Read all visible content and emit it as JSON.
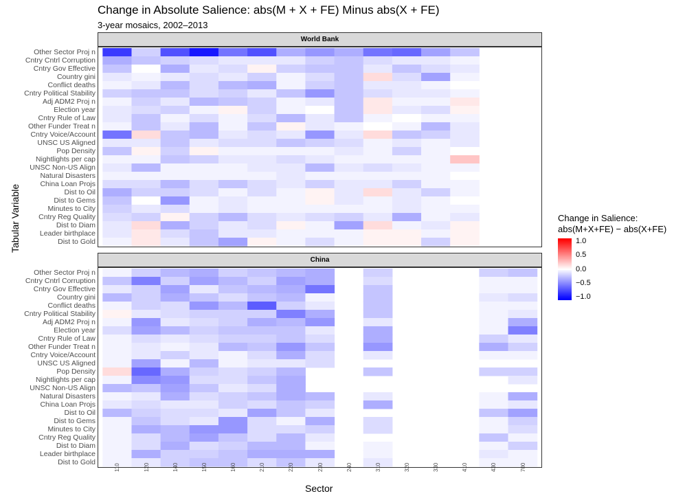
{
  "chart_data": {
    "type": "heatmap",
    "title": "Change in Absolute Salience: abs(M + X + FE) Minus abs(X + FE)",
    "subtitle": "3-year mosaics, 2002–2013",
    "xlabel": "Sector",
    "ylabel": "Tabular Variable",
    "x_categories": [
      "110",
      "120",
      "140",
      "150",
      "160",
      "210",
      "220",
      "230",
      "240",
      "310",
      "320",
      "330",
      "410",
      "430",
      "700"
    ],
    "y_categories": [
      "Other Sector Proj n",
      "Cntry Cntrl Corruption",
      "Cntry Gov Effective",
      "Country gini",
      "Conflict deaths",
      "Cntry Political Stability",
      "Adj ADM2 Proj n",
      "Election year",
      "Cntry Rule of Law",
      "Other Funder Treat n",
      "Cntry Voice/Account",
      "UNSC US Aligned",
      "Pop Density",
      "Nightlights per cap",
      "UNSC Non-US Align",
      "Natural Disasters",
      "China Loan Projs",
      "Dist to Oil",
      "Dist to Gems",
      "Minutes to City",
      "Cntry Reg Quality",
      "Dist to Diam",
      "Leader birthplace",
      "Dist to Gold"
    ],
    "legend": {
      "title_line1": "Change in Salience:",
      "title_line2": "abs(M+X+FE) − abs(X+FE)",
      "range": [
        -1.1,
        1.1
      ],
      "breaks": [
        1.0,
        0.5,
        0.0,
        -0.5,
        -1.0
      ],
      "break_labels": [
        "1.0",
        "0.5",
        "0.0",
        "−0.5",
        "−1.0"
      ],
      "low_color": "#0000ff",
      "mid_color": "#ffffff",
      "high_color": "#ff0000"
    },
    "panels": [
      {
        "name": "World Bank",
        "values": [
          [
            -0.85,
            -0.2,
            -0.75,
            -1.0,
            -0.6,
            -0.75,
            -0.35,
            -0.45,
            -0.35,
            -0.6,
            -0.65,
            -0.4,
            -0.25,
            null,
            null
          ],
          [
            -0.35,
            -0.25,
            -0.2,
            -0.15,
            -0.1,
            -0.1,
            -0.1,
            -0.2,
            -0.25,
            -0.15,
            -0.1,
            -0.1,
            -0.05,
            null,
            null
          ],
          [
            -0.25,
            0.0,
            -0.35,
            -0.1,
            -0.15,
            0.05,
            -0.2,
            -0.25,
            -0.25,
            -0.1,
            -0.25,
            -0.15,
            -0.1,
            null,
            null
          ],
          [
            -0.1,
            -0.05,
            -0.1,
            -0.15,
            -0.1,
            -0.2,
            -0.05,
            -0.15,
            -0.25,
            0.15,
            -0.15,
            -0.4,
            -0.05,
            null,
            null
          ],
          [
            -0.05,
            -0.1,
            -0.3,
            -0.15,
            -0.3,
            -0.35,
            -0.05,
            -0.2,
            -0.25,
            -0.1,
            -0.1,
            -0.05,
            0.0,
            null,
            null
          ],
          [
            -0.2,
            -0.25,
            -0.25,
            -0.15,
            -0.2,
            -0.1,
            -0.25,
            -0.45,
            -0.25,
            -0.15,
            -0.1,
            -0.1,
            -0.05,
            null,
            null
          ],
          [
            -0.05,
            -0.2,
            -0.1,
            -0.3,
            -0.25,
            -0.2,
            -0.05,
            -0.1,
            -0.25,
            0.1,
            -0.05,
            -0.05,
            0.1,
            null,
            null
          ],
          [
            -0.1,
            -0.15,
            -0.2,
            -0.05,
            0.05,
            -0.2,
            -0.05,
            0.0,
            -0.25,
            0.1,
            -0.1,
            -0.15,
            0.05,
            null,
            null
          ],
          [
            -0.1,
            -0.25,
            -0.05,
            -0.15,
            -0.05,
            -0.15,
            -0.3,
            -0.1,
            -0.25,
            -0.05,
            0.0,
            -0.05,
            -0.05,
            null,
            null
          ],
          [
            -0.05,
            -0.25,
            -0.1,
            -0.3,
            -0.05,
            -0.25,
            0.05,
            -0.1,
            -0.05,
            0.0,
            -0.05,
            -0.3,
            -0.1,
            null,
            null
          ],
          [
            -0.6,
            0.15,
            -0.25,
            -0.3,
            -0.1,
            -0.15,
            -0.1,
            -0.45,
            -0.1,
            0.15,
            -0.25,
            -0.2,
            -0.1,
            null,
            null
          ],
          [
            -0.1,
            -0.1,
            -0.25,
            -0.1,
            -0.15,
            -0.15,
            -0.25,
            -0.2,
            -0.15,
            -0.05,
            -0.1,
            -0.05,
            -0.1,
            null,
            null
          ],
          [
            -0.25,
            0.05,
            -0.2,
            0.05,
            -0.05,
            -0.05,
            -0.05,
            -0.05,
            -0.1,
            -0.05,
            -0.2,
            -0.05,
            0.0,
            null,
            null
          ],
          [
            -0.05,
            -0.05,
            -0.25,
            -0.2,
            -0.1,
            -0.1,
            -0.15,
            -0.1,
            -0.05,
            -0.05,
            -0.05,
            -0.05,
            0.25,
            null,
            null
          ],
          [
            -0.1,
            -0.3,
            -0.05,
            -0.05,
            -0.05,
            -0.1,
            -0.1,
            -0.3,
            -0.1,
            -0.15,
            -0.1,
            -0.05,
            -0.05,
            null,
            null
          ],
          [
            -0.05,
            -0.05,
            -0.05,
            -0.05,
            -0.05,
            -0.05,
            -0.1,
            -0.05,
            -0.05,
            -0.05,
            -0.05,
            -0.05,
            0.0,
            null,
            null
          ],
          [
            -0.15,
            -0.15,
            -0.3,
            -0.15,
            -0.25,
            -0.15,
            -0.1,
            -0.2,
            -0.1,
            -0.1,
            -0.2,
            -0.05,
            -0.05,
            null,
            null
          ],
          [
            -0.35,
            -0.2,
            -0.2,
            -0.15,
            -0.05,
            -0.15,
            -0.05,
            0.05,
            -0.1,
            0.15,
            -0.1,
            -0.2,
            -0.05,
            null,
            null
          ],
          [
            -0.25,
            0.0,
            -0.45,
            -0.05,
            -0.1,
            -0.05,
            -0.05,
            0.05,
            -0.1,
            -0.05,
            -0.1,
            -0.05,
            0.0,
            null,
            null
          ],
          [
            -0.2,
            -0.1,
            -0.15,
            -0.05,
            -0.1,
            -0.05,
            -0.05,
            -0.05,
            -0.05,
            -0.05,
            -0.1,
            -0.05,
            -0.05,
            null,
            null
          ],
          [
            -0.15,
            -0.2,
            0.05,
            -0.2,
            -0.3,
            -0.15,
            -0.1,
            -0.15,
            -0.2,
            -0.1,
            -0.35,
            -0.05,
            -0.1,
            null,
            null
          ],
          [
            -0.1,
            0.15,
            -0.35,
            -0.2,
            -0.1,
            -0.15,
            0.05,
            -0.05,
            -0.4,
            0.15,
            -0.05,
            -0.1,
            0.05,
            null,
            null
          ],
          [
            -0.1,
            0.1,
            -0.15,
            -0.25,
            -0.1,
            -0.1,
            -0.05,
            -0.05,
            -0.05,
            0.05,
            0.05,
            -0.05,
            0.05,
            null,
            null
          ],
          [
            -0.05,
            0.1,
            -0.1,
            -0.25,
            -0.4,
            0.05,
            -0.05,
            -0.15,
            -0.05,
            0.05,
            0.05,
            -0.2,
            0.05,
            null,
            null
          ]
        ]
      },
      {
        "name": "China",
        "values": [
          [
            -0.05,
            -0.2,
            -0.3,
            -0.35,
            -0.2,
            -0.25,
            -0.3,
            -0.35,
            null,
            -0.2,
            null,
            null,
            null,
            -0.2,
            -0.25
          ],
          [
            -0.25,
            -0.55,
            -0.2,
            -0.4,
            -0.3,
            -0.2,
            -0.4,
            -0.35,
            null,
            -0.15,
            null,
            null,
            null,
            -0.05,
            -0.05
          ],
          [
            -0.1,
            -0.2,
            -0.4,
            -0.1,
            -0.25,
            -0.3,
            -0.35,
            -0.6,
            null,
            -0.25,
            null,
            null,
            null,
            -0.05,
            -0.05
          ],
          [
            -0.3,
            -0.2,
            -0.35,
            -0.25,
            -0.15,
            -0.25,
            -0.3,
            -0.05,
            null,
            -0.25,
            null,
            null,
            null,
            -0.1,
            -0.15
          ],
          [
            -0.05,
            -0.2,
            -0.15,
            -0.45,
            -0.3,
            -0.7,
            -0.2,
            -0.1,
            null,
            -0.25,
            null,
            null,
            null,
            -0.05,
            -0.05
          ],
          [
            0.05,
            -0.1,
            -0.15,
            -0.2,
            -0.2,
            -0.2,
            -0.55,
            -0.35,
            null,
            -0.25,
            null,
            null,
            null,
            -0.05,
            -0.1
          ],
          [
            -0.05,
            -0.45,
            -0.1,
            -0.15,
            -0.2,
            -0.35,
            -0.3,
            -0.45,
            null,
            -0.1,
            null,
            null,
            null,
            -0.05,
            -0.35
          ],
          [
            -0.15,
            -0.4,
            -0.3,
            -0.2,
            -0.25,
            -0.25,
            -0.25,
            -0.1,
            null,
            -0.35,
            null,
            null,
            null,
            -0.05,
            -0.55
          ],
          [
            -0.05,
            -0.15,
            -0.1,
            -0.15,
            -0.2,
            -0.2,
            -0.25,
            -0.15,
            null,
            -0.35,
            null,
            null,
            null,
            -0.2,
            -0.1
          ],
          [
            -0.05,
            -0.1,
            -0.05,
            -0.1,
            -0.3,
            -0.25,
            -0.45,
            -0.25,
            null,
            -0.45,
            null,
            null,
            null,
            -0.35,
            -0.2
          ],
          [
            -0.05,
            -0.1,
            -0.2,
            -0.1,
            -0.05,
            -0.15,
            -0.35,
            -0.15,
            null,
            -0.1,
            null,
            null,
            null,
            -0.05,
            -0.05
          ],
          [
            -0.05,
            -0.4,
            -0.05,
            -0.3,
            -0.05,
            -0.1,
            -0.1,
            -0.15,
            null,
            null,
            null,
            null,
            null,
            null,
            null
          ],
          [
            0.15,
            -0.65,
            -0.35,
            -0.2,
            -0.15,
            -0.2,
            -0.3,
            null,
            null,
            -0.25,
            null,
            null,
            null,
            -0.2,
            -0.2
          ],
          [
            -0.05,
            -0.5,
            -0.45,
            -0.15,
            -0.15,
            -0.25,
            -0.35,
            null,
            null,
            null,
            null,
            null,
            null,
            null,
            -0.1
          ],
          [
            -0.3,
            -0.25,
            -0.4,
            -0.25,
            -0.1,
            -0.15,
            -0.35,
            null,
            null,
            null,
            null,
            null,
            null,
            null,
            null
          ],
          [
            -0.05,
            -0.1,
            -0.35,
            -0.15,
            -0.2,
            -0.25,
            -0.35,
            -0.3,
            null,
            -0.1,
            null,
            null,
            null,
            -0.05,
            -0.35
          ],
          [
            -0.1,
            -0.15,
            -0.1,
            -0.1,
            -0.2,
            -0.15,
            -0.25,
            -0.2,
            null,
            -0.35,
            null,
            null,
            null,
            -0.05,
            -0.1
          ],
          [
            -0.3,
            -0.2,
            -0.15,
            -0.15,
            -0.1,
            -0.4,
            -0.25,
            -0.1,
            null,
            null,
            null,
            null,
            null,
            -0.25,
            -0.4
          ],
          [
            -0.05,
            -0.25,
            -0.15,
            -0.1,
            -0.45,
            -0.15,
            -0.05,
            -0.35,
            null,
            -0.15,
            null,
            null,
            null,
            -0.05,
            -0.2
          ],
          [
            -0.05,
            -0.35,
            -0.3,
            -0.45,
            -0.45,
            -0.15,
            -0.15,
            -0.2,
            null,
            -0.15,
            null,
            null,
            null,
            -0.05,
            -0.15
          ],
          [
            -0.05,
            -0.15,
            -0.3,
            -0.4,
            -0.25,
            -0.15,
            -0.3,
            -0.1,
            null,
            null,
            null,
            null,
            null,
            -0.25,
            -0.05
          ],
          [
            -0.05,
            -0.15,
            -0.35,
            -0.15,
            -0.2,
            -0.3,
            -0.3,
            -0.05,
            null,
            -0.05,
            null,
            null,
            null,
            -0.05,
            -0.2
          ],
          [
            -0.05,
            -0.35,
            -0.2,
            -0.2,
            -0.25,
            -0.35,
            -0.35,
            -0.35,
            null,
            -0.05,
            null,
            null,
            null,
            -0.1,
            -0.05
          ],
          [
            -0.05,
            -0.1,
            -0.2,
            -0.25,
            -0.25,
            -0.15,
            -0.25,
            -0.1,
            null,
            -0.1,
            null,
            null,
            null,
            -0.05,
            -0.05
          ]
        ]
      }
    ]
  }
}
